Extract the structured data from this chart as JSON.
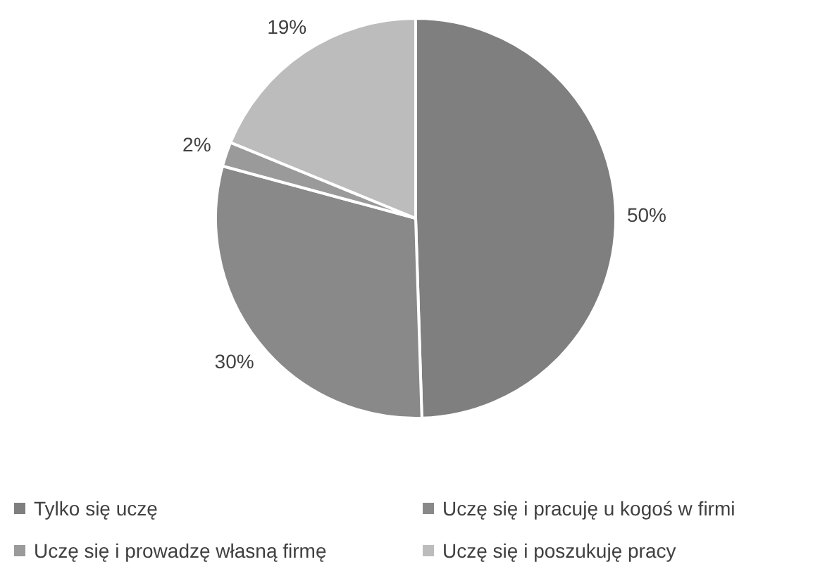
{
  "chart_data": {
    "type": "pie",
    "categories": [
      "Tylko się uczę",
      "Uczę się i pracuję u kogoś w firmi",
      "Uczę się i prowadzę własną firmę",
      "Uczę się i poszukuję pracy"
    ],
    "values": [
      50,
      30,
      2,
      19
    ],
    "colors": [
      "#7f7f7f",
      "#898989",
      "#9a9a9a",
      "#bcbcbc"
    ],
    "value_labels": [
      "50%",
      "30%",
      "2%",
      "19%"
    ],
    "legend": "bottom"
  }
}
